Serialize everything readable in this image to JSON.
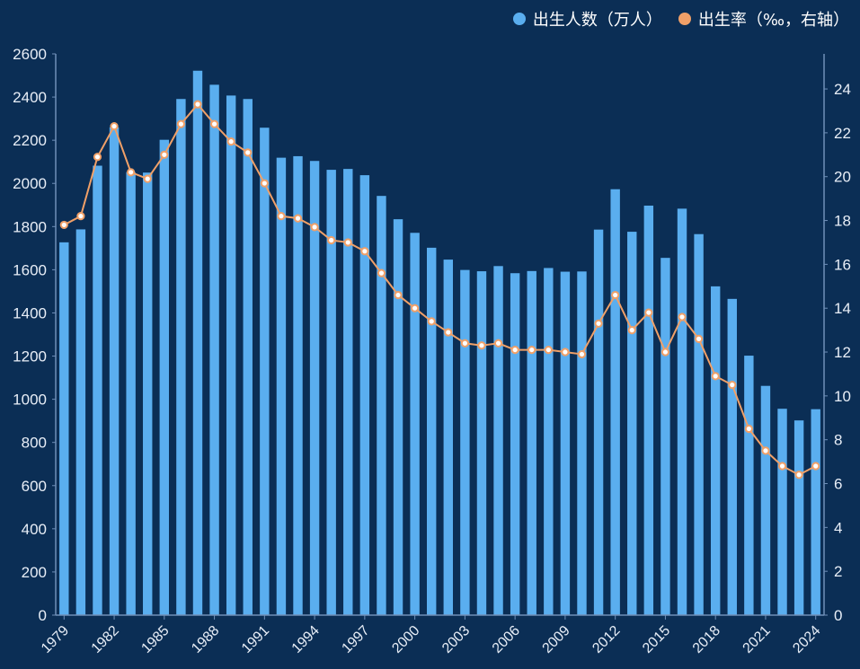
{
  "colors": {
    "background": "#0b2e55",
    "bar": "#5aaeef",
    "line": "#f0a068",
    "axis": "#6f8fb8",
    "text": "#ffffff",
    "tick_text": "#e8eef7"
  },
  "legend": {
    "bar_label": "出生人数（万人）",
    "line_label": "出生率（‰，右轴）"
  },
  "chart_data": {
    "type": "bar",
    "years": [
      "1979",
      "1980",
      "1981",
      "1982",
      "1983",
      "1984",
      "1985",
      "1986",
      "1987",
      "1988",
      "1989",
      "1990",
      "1991",
      "1992",
      "1993",
      "1994",
      "1995",
      "1996",
      "1997",
      "1998",
      "1999",
      "2000",
      "2001",
      "2002",
      "2003",
      "2004",
      "2005",
      "2006",
      "2007",
      "2008",
      "2009",
      "2010",
      "2011",
      "2012",
      "2013",
      "2014",
      "2015",
      "2016",
      "2017",
      "2018",
      "2019",
      "2020",
      "2021",
      "2022",
      "2023",
      "2024"
    ],
    "x_tick_labels": [
      "1979",
      "1982",
      "1985",
      "1988",
      "1991",
      "1994",
      "1997",
      "2000",
      "2003",
      "2006",
      "2009",
      "2012",
      "2015",
      "2018",
      "2021",
      "2024"
    ],
    "series": [
      {
        "name": "出生人数（万人）",
        "type": "bar",
        "axis": "left",
        "values": [
          1727,
          1787,
          2082,
          2260,
          2052,
          2050,
          2202,
          2391,
          2522,
          2457,
          2407,
          2391,
          2258,
          2119,
          2126,
          2104,
          2063,
          2067,
          2038,
          1942,
          1834,
          1771,
          1702,
          1647,
          1599,
          1593,
          1617,
          1584,
          1594,
          1608,
          1591,
          1592,
          1786,
          1973,
          1776,
          1897,
          1655,
          1883,
          1765,
          1523,
          1465,
          1202,
          1062,
          956,
          902,
          954
        ]
      },
      {
        "name": "出生率（‰，右轴）",
        "type": "line",
        "axis": "right",
        "values": [
          17.8,
          18.2,
          20.9,
          22.3,
          20.2,
          19.9,
          21.0,
          22.4,
          23.3,
          22.4,
          21.6,
          21.1,
          19.7,
          18.2,
          18.1,
          17.7,
          17.1,
          17.0,
          16.6,
          15.6,
          14.6,
          14.0,
          13.4,
          12.9,
          12.4,
          12.3,
          12.4,
          12.1,
          12.1,
          12.1,
          12.0,
          11.9,
          13.3,
          14.6,
          13.0,
          13.8,
          12.0,
          13.6,
          12.6,
          10.9,
          10.5,
          8.5,
          7.5,
          6.8,
          6.4,
          6.8
        ]
      }
    ],
    "y_left": {
      "min": 0,
      "max": 2600,
      "ticks": [
        0,
        200,
        400,
        600,
        800,
        1000,
        1200,
        1400,
        1600,
        1800,
        2000,
        2200,
        2400,
        2600
      ]
    },
    "y_right": {
      "min": 0,
      "max": 25.6,
      "ticks": [
        0,
        2,
        4,
        6,
        8,
        10,
        12,
        14,
        16,
        18,
        20,
        22,
        24
      ]
    },
    "legend_position": "top-right",
    "grid": false
  }
}
